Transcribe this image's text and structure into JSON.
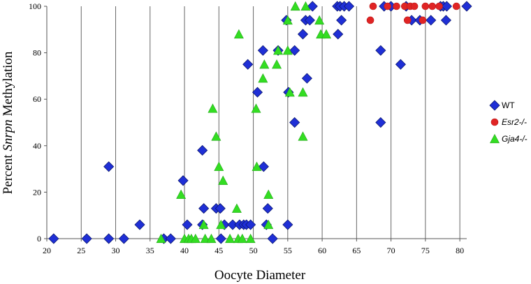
{
  "chart_data": {
    "type": "scatter",
    "xlabel": "Oocyte Diameter",
    "ylabel": {
      "pre": "Percent ",
      "italic": "Snrpn",
      "post": " Methylation"
    },
    "xlim": [
      20,
      81
    ],
    "ylim": [
      0,
      100
    ],
    "x_ticks": [
      20,
      25,
      30,
      35,
      40,
      45,
      50,
      55,
      60,
      65,
      70,
      75,
      80
    ],
    "y_ticks": [
      0,
      20,
      40,
      60,
      80,
      100
    ],
    "grid": "vertical",
    "legend_position": "right",
    "series": [
      {
        "name": "WT",
        "name_italic": false,
        "marker": "diamond",
        "color": "#1f2fd6",
        "points": [
          [
            21,
            0
          ],
          [
            25.8,
            0
          ],
          [
            29,
            31
          ],
          [
            29,
            0
          ],
          [
            31.2,
            0
          ],
          [
            33.5,
            6
          ],
          [
            37,
            0
          ],
          [
            38,
            0
          ],
          [
            39.8,
            25
          ],
          [
            40.4,
            6
          ],
          [
            42.6,
            38
          ],
          [
            42.8,
            13
          ],
          [
            42.6,
            6
          ],
          [
            44.6,
            13
          ],
          [
            45.2,
            13
          ],
          [
            45.3,
            0
          ],
          [
            45.8,
            6
          ],
          [
            47,
            6
          ],
          [
            48,
            6
          ],
          [
            48.6,
            6
          ],
          [
            49,
            6
          ],
          [
            49.2,
            75
          ],
          [
            49.6,
            6
          ],
          [
            50.6,
            63
          ],
          [
            51.4,
            81
          ],
          [
            51.5,
            31
          ],
          [
            51.9,
            6
          ],
          [
            52.1,
            13
          ],
          [
            52.8,
            0
          ],
          [
            53.6,
            81
          ],
          [
            54.8,
            94
          ],
          [
            55,
            6
          ],
          [
            55.1,
            63
          ],
          [
            56,
            81
          ],
          [
            56,
            50
          ],
          [
            57.2,
            88
          ],
          [
            57.6,
            94
          ],
          [
            57.8,
            69
          ],
          [
            58.2,
            94
          ],
          [
            58.6,
            100
          ],
          [
            62.2,
            100
          ],
          [
            62.3,
            88
          ],
          [
            62.6,
            100
          ],
          [
            62.8,
            94
          ],
          [
            63.2,
            100
          ],
          [
            63.9,
            100
          ],
          [
            68.5,
            81
          ],
          [
            68.5,
            50
          ],
          [
            69,
            100
          ],
          [
            70,
            100
          ],
          [
            71.4,
            75
          ],
          [
            72.2,
            100
          ],
          [
            73,
            94
          ],
          [
            74.2,
            94
          ],
          [
            75.8,
            94
          ],
          [
            77.2,
            100
          ],
          [
            77.6,
            100
          ],
          [
            78,
            94
          ],
          [
            78.1,
            100
          ],
          [
            81,
            100
          ]
        ]
      },
      {
        "name": "Esr2-/-",
        "name_italic": true,
        "marker": "circle",
        "color": "#e02424",
        "points": [
          [
            67,
            94
          ],
          [
            67.4,
            100
          ],
          [
            69.5,
            100
          ],
          [
            70.8,
            100
          ],
          [
            72,
            100
          ],
          [
            72.4,
            94
          ],
          [
            72.8,
            100
          ],
          [
            73.4,
            100
          ],
          [
            74.6,
            94
          ],
          [
            75,
            100
          ],
          [
            76,
            100
          ],
          [
            77,
            100
          ],
          [
            79.5,
            100
          ]
        ]
      },
      {
        "name": "Gja4-/-",
        "name_italic": true,
        "marker": "triangle",
        "color": "#33dd22",
        "points": [
          [
            36.6,
            0
          ],
          [
            39.5,
            19
          ],
          [
            40,
            0
          ],
          [
            40.6,
            0
          ],
          [
            41,
            0
          ],
          [
            41.6,
            0
          ],
          [
            42.8,
            6
          ],
          [
            43,
            0
          ],
          [
            43.9,
            0
          ],
          [
            44.1,
            56
          ],
          [
            44.6,
            44
          ],
          [
            45,
            31
          ],
          [
            45.3,
            6
          ],
          [
            45.6,
            25
          ],
          [
            46.6,
            0
          ],
          [
            47.6,
            13
          ],
          [
            47.8,
            0
          ],
          [
            47.9,
            88
          ],
          [
            48.4,
            0
          ],
          [
            49.6,
            0
          ],
          [
            50.4,
            56
          ],
          [
            50.5,
            31
          ],
          [
            51.4,
            69
          ],
          [
            51.6,
            75
          ],
          [
            52.2,
            19
          ],
          [
            52.2,
            6
          ],
          [
            53.4,
            75
          ],
          [
            53.6,
            81
          ],
          [
            55,
            81
          ],
          [
            55,
            94
          ],
          [
            55.3,
            63
          ],
          [
            56.1,
            100
          ],
          [
            57.2,
            63
          ],
          [
            57.2,
            44
          ],
          [
            57.6,
            100
          ],
          [
            59.6,
            94
          ],
          [
            59.8,
            88
          ],
          [
            60.6,
            88
          ]
        ]
      }
    ]
  }
}
